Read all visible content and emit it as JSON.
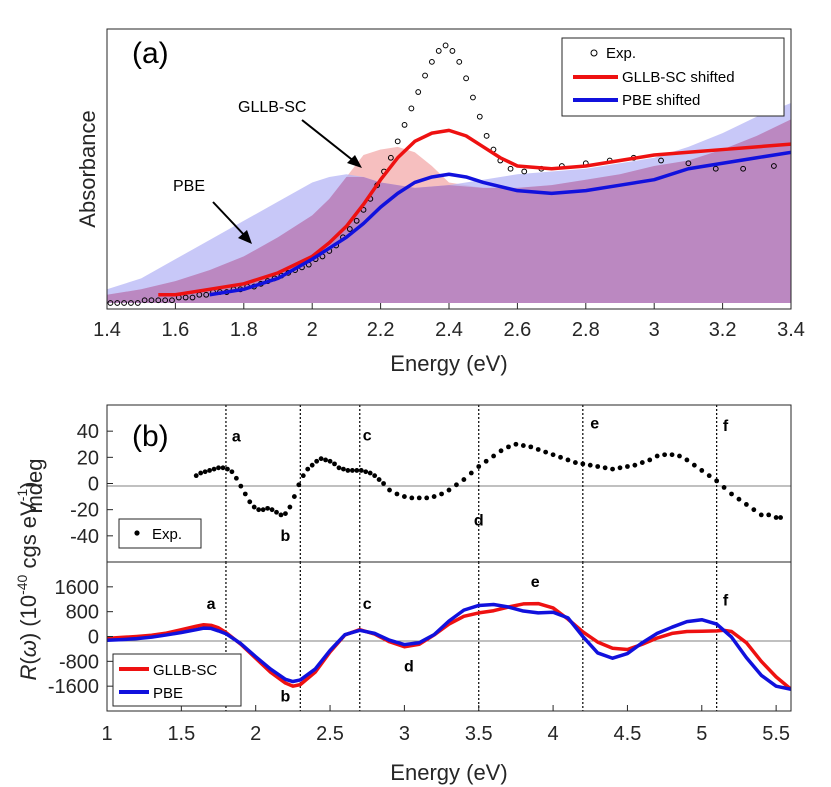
{
  "colors": {
    "gllb": "#ee1111",
    "pbe": "#1111dd",
    "gllb_fill": "#f4b4b4",
    "pbe_fill": "#b5b5f5",
    "overlap_fill": "#b983bd",
    "axis": "#262626"
  },
  "chart_data": [
    {
      "type": "line",
      "panel": "(a)",
      "xlabel": "Energy (eV)",
      "ylabel": "Absorbance",
      "xlim": [
        1.4,
        3.4
      ],
      "ylim": [
        0,
        1
      ],
      "xticks": [
        "1.4",
        "1.6",
        "1.8",
        "2",
        "2.2",
        "2.4",
        "2.6",
        "2.8",
        "3",
        "3.2",
        "3.4"
      ],
      "legend_position": "top-right",
      "legend": [
        "Exp.",
        "GLLB-SC shifted",
        "PBE shifted"
      ],
      "annotations": [
        "GLLB-SC",
        "PBE"
      ],
      "fills": [
        {
          "name": "GLLB-SC unshifted",
          "x": [
            1.4,
            1.5,
            1.6,
            1.7,
            1.8,
            1.9,
            2.0,
            2.05,
            2.1,
            2.15,
            2.2,
            2.25,
            2.3,
            2.35,
            2.4,
            2.5,
            2.6,
            2.7,
            2.8,
            2.9,
            3.0,
            3.1,
            3.2,
            3.3,
            3.4
          ],
          "y": [
            0.03,
            0.05,
            0.08,
            0.12,
            0.17,
            0.24,
            0.32,
            0.38,
            0.46,
            0.54,
            0.56,
            0.57,
            0.55,
            0.5,
            0.44,
            0.42,
            0.42,
            0.43,
            0.45,
            0.47,
            0.5,
            0.52,
            0.56,
            0.61,
            0.67
          ]
        },
        {
          "name": "PBE unshifted",
          "x": [
            1.4,
            1.5,
            1.6,
            1.7,
            1.8,
            1.9,
            2.0,
            2.05,
            2.1,
            2.15,
            2.2,
            2.3,
            2.4,
            2.5,
            2.6,
            2.7,
            2.8,
            2.9,
            3.0,
            3.1,
            3.2,
            3.3,
            3.4
          ],
          "y": [
            0.05,
            0.09,
            0.16,
            0.23,
            0.3,
            0.37,
            0.44,
            0.46,
            0.47,
            0.46,
            0.44,
            0.42,
            0.43,
            0.45,
            0.47,
            0.48,
            0.49,
            0.51,
            0.53,
            0.57,
            0.62,
            0.68,
            0.73
          ]
        }
      ],
      "series": [
        {
          "name": "Exp.",
          "marker": "circle",
          "x": [
            1.41,
            1.43,
            1.45,
            1.47,
            1.49,
            1.51,
            1.53,
            1.55,
            1.57,
            1.59,
            1.61,
            1.63,
            1.65,
            1.67,
            1.69,
            1.71,
            1.73,
            1.75,
            1.77,
            1.79,
            1.81,
            1.83,
            1.85,
            1.87,
            1.89,
            1.91,
            1.93,
            1.95,
            1.97,
            1.99,
            2.01,
            2.03,
            2.05,
            2.07,
            2.09,
            2.11,
            2.13,
            2.15,
            2.17,
            2.19,
            2.21,
            2.23,
            2.25,
            2.27,
            2.29,
            2.31,
            2.33,
            2.35,
            2.37,
            2.39,
            2.41,
            2.43,
            2.45,
            2.47,
            2.49,
            2.51,
            2.53,
            2.55,
            2.58,
            2.62,
            2.67,
            2.73,
            2.8,
            2.87,
            2.94,
            3.02,
            3.1,
            3.18,
            3.26,
            3.35
          ],
          "y": [
            0.0,
            0.0,
            0.0,
            0.0,
            0.0,
            0.01,
            0.01,
            0.01,
            0.01,
            0.01,
            0.02,
            0.02,
            0.02,
            0.03,
            0.03,
            0.04,
            0.04,
            0.04,
            0.05,
            0.05,
            0.06,
            0.06,
            0.07,
            0.08,
            0.09,
            0.1,
            0.11,
            0.12,
            0.13,
            0.14,
            0.16,
            0.17,
            0.19,
            0.21,
            0.24,
            0.27,
            0.3,
            0.34,
            0.38,
            0.43,
            0.48,
            0.53,
            0.59,
            0.65,
            0.71,
            0.77,
            0.83,
            0.88,
            0.92,
            0.94,
            0.92,
            0.88,
            0.82,
            0.75,
            0.68,
            0.61,
            0.56,
            0.52,
            0.49,
            0.48,
            0.49,
            0.5,
            0.51,
            0.52,
            0.53,
            0.52,
            0.51,
            0.49,
            0.49,
            0.5
          ]
        },
        {
          "name": "GLLB-SC shifted",
          "x": [
            1.55,
            1.6,
            1.7,
            1.8,
            1.9,
            2.0,
            2.05,
            2.1,
            2.15,
            2.2,
            2.25,
            2.3,
            2.35,
            2.4,
            2.45,
            2.5,
            2.55,
            2.6,
            2.7,
            2.8,
            2.9,
            3.0,
            3.1,
            3.2,
            3.3,
            3.4
          ],
          "y": [
            0.03,
            0.03,
            0.05,
            0.07,
            0.11,
            0.17,
            0.22,
            0.28,
            0.36,
            0.45,
            0.53,
            0.59,
            0.62,
            0.63,
            0.61,
            0.57,
            0.53,
            0.5,
            0.49,
            0.5,
            0.52,
            0.54,
            0.55,
            0.56,
            0.57,
            0.58
          ]
        },
        {
          "name": "PBE shifted",
          "x": [
            1.7,
            1.8,
            1.9,
            2.0,
            2.05,
            2.1,
            2.15,
            2.2,
            2.25,
            2.3,
            2.35,
            2.4,
            2.45,
            2.5,
            2.6,
            2.7,
            2.8,
            2.9,
            3.0,
            3.1,
            3.2,
            3.3,
            3.4
          ],
          "y": [
            0.03,
            0.05,
            0.09,
            0.16,
            0.2,
            0.24,
            0.29,
            0.35,
            0.4,
            0.44,
            0.46,
            0.47,
            0.46,
            0.44,
            0.41,
            0.4,
            0.41,
            0.43,
            0.45,
            0.49,
            0.51,
            0.53,
            0.55
          ]
        }
      ]
    },
    {
      "type": "scatter",
      "panel": "(b)",
      "ylabel": "mdeg",
      "xlim": [
        1,
        5.6
      ],
      "ylim": [
        -60,
        60
      ],
      "yticks": [
        "40",
        "20",
        "0",
        "-20",
        "-40"
      ],
      "yticks_values": [
        40,
        20,
        0,
        -20,
        -40
      ],
      "legend_position": "bottom-left",
      "legend": [
        "Exp."
      ],
      "peak_labels": [
        {
          "label": "a",
          "x": 1.87,
          "y": 32
        },
        {
          "label": "b",
          "x": 2.2,
          "y": -44
        },
        {
          "label": "c",
          "x": 2.75,
          "y": 33
        },
        {
          "label": "d",
          "x": 3.5,
          "y": -32
        },
        {
          "label": "e",
          "x": 4.28,
          "y": 42
        },
        {
          "label": "f",
          "x": 5.16,
          "y": 40
        }
      ],
      "vlines": [
        1.8,
        2.3,
        2.7,
        3.5,
        4.2,
        5.1
      ],
      "series": [
        {
          "name": "Exp.",
          "marker": "dot",
          "x": [
            1.6,
            1.63,
            1.66,
            1.69,
            1.72,
            1.75,
            1.78,
            1.81,
            1.84,
            1.87,
            1.9,
            1.93,
            1.96,
            1.99,
            2.02,
            2.05,
            2.08,
            2.11,
            2.14,
            2.17,
            2.2,
            2.23,
            2.26,
            2.29,
            2.32,
            2.35,
            2.38,
            2.41,
            2.44,
            2.47,
            2.5,
            2.53,
            2.56,
            2.59,
            2.62,
            2.65,
            2.68,
            2.71,
            2.74,
            2.77,
            2.8,
            2.83,
            2.86,
            2.9,
            2.95,
            3.0,
            3.05,
            3.1,
            3.15,
            3.2,
            3.25,
            3.3,
            3.35,
            3.4,
            3.45,
            3.5,
            3.55,
            3.6,
            3.65,
            3.7,
            3.75,
            3.8,
            3.85,
            3.9,
            3.95,
            4.0,
            4.05,
            4.1,
            4.15,
            4.2,
            4.25,
            4.3,
            4.35,
            4.4,
            4.45,
            4.5,
            4.55,
            4.6,
            4.65,
            4.7,
            4.75,
            4.8,
            4.85,
            4.9,
            4.95,
            5.0,
            5.05,
            5.1,
            5.15,
            5.2,
            5.25,
            5.3,
            5.35,
            5.4,
            5.45,
            5.5,
            5.53
          ],
          "y": [
            6,
            8,
            9,
            10,
            11,
            12,
            12,
            11,
            9,
            4,
            -2,
            -8,
            -14,
            -18,
            -20,
            -20,
            -19,
            -20,
            -22,
            -24,
            -23,
            -18,
            -10,
            -1,
            6,
            11,
            14,
            17,
            19,
            18,
            17,
            15,
            12,
            11,
            10,
            10,
            10,
            10,
            9,
            8,
            6,
            3,
            0,
            -5,
            -8,
            -10,
            -11,
            -11,
            -11,
            -10,
            -8,
            -5,
            -1,
            3,
            8,
            13,
            17,
            21,
            25,
            28,
            30,
            29,
            28,
            26,
            24,
            22,
            20,
            18,
            16,
            15,
            14,
            13,
            12,
            11,
            12,
            13,
            14,
            16,
            18,
            21,
            22,
            22,
            21,
            18,
            14,
            10,
            6,
            2,
            -3,
            -8,
            -12,
            -16,
            -20,
            -24,
            -24,
            -26,
            -26
          ]
        }
      ]
    },
    {
      "type": "line",
      "panel": "",
      "xlabel": "Energy (eV)",
      "ylabel": "R(ω) (10^-40 cgs eV^-1)",
      "xlim": [
        1,
        5.6
      ],
      "ylim": [
        -2400,
        2400
      ],
      "xticks": [
        "1",
        "1.5",
        "2",
        "2.5",
        "3",
        "3.5",
        "4",
        "4.5",
        "5",
        "5.5"
      ],
      "xticks_values": [
        1,
        1.5,
        2,
        2.5,
        3,
        3.5,
        4,
        4.5,
        5,
        5.5
      ],
      "yticks": [
        "1600",
        "800",
        "0",
        "-800",
        "-1600"
      ],
      "yticks_values": [
        1600,
        800,
        0,
        -800,
        -1600
      ],
      "legend_position": "bottom-left",
      "legend": [
        "GLLB-SC",
        "PBE"
      ],
      "peak_labels": [
        {
          "label": "a",
          "x": 1.7,
          "y": 880
        },
        {
          "label": "b",
          "x": 2.2,
          "y": -2100
        },
        {
          "label": "c",
          "x": 2.75,
          "y": 880
        },
        {
          "label": "d",
          "x": 3.03,
          "y": -1120
        },
        {
          "label": "e",
          "x": 3.88,
          "y": 1590
        },
        {
          "label": "f",
          "x": 5.16,
          "y": 1000
        }
      ],
      "vlines": [
        1.8,
        2.3,
        2.7,
        3.5,
        4.2,
        5.1
      ],
      "series": [
        {
          "name": "GLLB-SC",
          "x": [
            1.0,
            1.1,
            1.2,
            1.3,
            1.4,
            1.5,
            1.6,
            1.65,
            1.7,
            1.75,
            1.8,
            1.9,
            2.0,
            2.1,
            2.2,
            2.25,
            2.3,
            2.4,
            2.5,
            2.6,
            2.7,
            2.8,
            2.9,
            3.0,
            3.1,
            3.2,
            3.3,
            3.4,
            3.5,
            3.6,
            3.7,
            3.8,
            3.9,
            4.0,
            4.1,
            4.2,
            4.3,
            4.4,
            4.5,
            4.6,
            4.7,
            4.8,
            4.9,
            5.0,
            5.1,
            5.15,
            5.2,
            5.3,
            5.4,
            5.5,
            5.6
          ],
          "y": [
            -60,
            -30,
            0,
            40,
            110,
            220,
            330,
            380,
            360,
            280,
            130,
            -250,
            -700,
            -1150,
            -1500,
            -1600,
            -1550,
            -1150,
            -500,
            50,
            220,
            80,
            -170,
            -330,
            -250,
            50,
            400,
            650,
            760,
            830,
            950,
            1050,
            1060,
            920,
            560,
            150,
            -180,
            -380,
            -420,
            -250,
            -50,
            100,
            160,
            170,
            180,
            200,
            160,
            -200,
            -800,
            -1300,
            -1700
          ]
        },
        {
          "name": "PBE",
          "x": [
            1.0,
            1.1,
            1.2,
            1.3,
            1.4,
            1.5,
            1.6,
            1.65,
            1.7,
            1.75,
            1.8,
            1.9,
            2.0,
            2.1,
            2.2,
            2.25,
            2.3,
            2.4,
            2.5,
            2.6,
            2.7,
            2.8,
            2.9,
            3.0,
            3.1,
            3.2,
            3.3,
            3.4,
            3.5,
            3.6,
            3.7,
            3.8,
            3.9,
            4.0,
            4.1,
            4.2,
            4.3,
            4.4,
            4.5,
            4.6,
            4.7,
            4.8,
            4.9,
            5.0,
            5.1,
            5.2,
            5.3,
            5.4,
            5.5,
            5.6
          ],
          "y": [
            -120,
            -100,
            -70,
            -20,
            50,
            130,
            220,
            270,
            260,
            180,
            90,
            -230,
            -650,
            -1050,
            -1380,
            -1450,
            -1400,
            -1050,
            -450,
            60,
            200,
            100,
            -120,
            -260,
            -200,
            60,
            500,
            850,
            1000,
            1030,
            950,
            820,
            760,
            780,
            600,
            0,
            -530,
            -700,
            -550,
            -200,
            100,
            300,
            480,
            540,
            400,
            -20,
            -680,
            -1250,
            -1600,
            -1700
          ]
        }
      ]
    }
  ]
}
